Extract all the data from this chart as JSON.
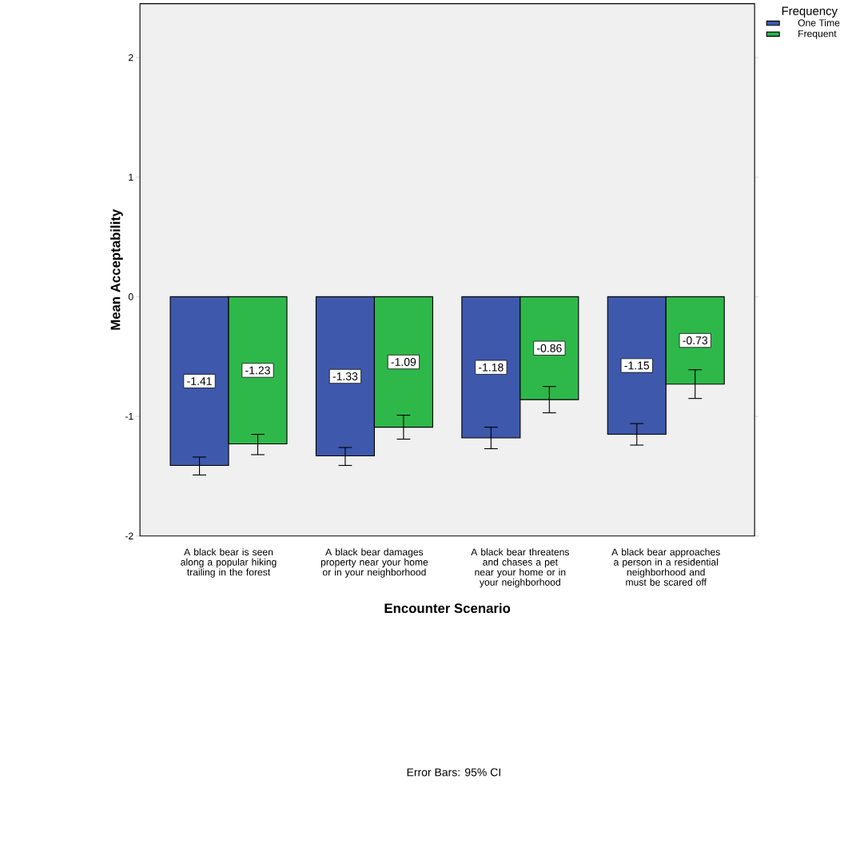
{
  "chart_data": {
    "type": "bar",
    "xlabel": "Encounter Scenario",
    "ylabel": "Mean Acceptability",
    "legend_title": "Frequency",
    "categories": [
      "A black bear is seen along a popular hiking trailing in the forest",
      "A black bear damages property near your home or in your neighborhood",
      "A black bear threatens and chases a pet near your home or in your neighborhood",
      "A black bear approaches a person in a residential neighborhood and must be scared off"
    ],
    "series": [
      {
        "name": "One Time",
        "color": "#3e58ac",
        "values": [
          -1.41,
          -1.33,
          -1.18,
          -1.15
        ],
        "value_labels": [
          "-1.41",
          "-1.33",
          "-1.18",
          "-1.15"
        ],
        "errors": [
          [
            -1.49,
            -1.34
          ],
          [
            -1.41,
            -1.26
          ],
          [
            -1.27,
            -1.09
          ],
          [
            -1.24,
            -1.06
          ]
        ]
      },
      {
        "name": "Frequent",
        "color": "#2eb84a",
        "values": [
          -1.23,
          -1.09,
          -0.86,
          -0.73
        ],
        "value_labels": [
          "-1.23",
          "-1.09",
          "-0.86",
          "-0.73"
        ],
        "errors": [
          [
            -1.32,
            -1.15
          ],
          [
            -1.19,
            -0.99
          ],
          [
            -0.97,
            -0.75
          ],
          [
            -0.85,
            -0.61
          ]
        ]
      }
    ],
    "ylim": [
      -2,
      2.45
    ],
    "yticks": [
      -2,
      -1,
      0,
      1,
      2
    ],
    "grid": false,
    "legend": "top right",
    "annotations": [
      "Error Bars: 95% CI"
    ]
  }
}
